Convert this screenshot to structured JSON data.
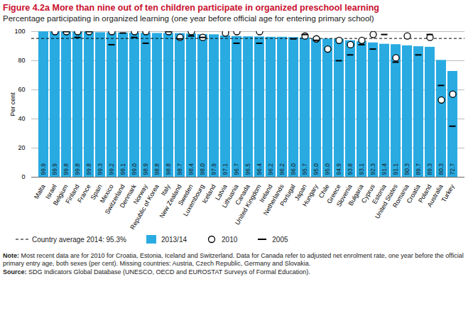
{
  "chart_data": {
    "type": "bar",
    "title": "Figure 4.2a More than nine out of ten children participate in organized preschool learning",
    "subtitle": "Percentage participating in organized learning (one year before official age for entering primary school)",
    "y_label": "Per cent",
    "categories": [
      "Malta",
      "Israel",
      "Belgium",
      "Finland",
      "France",
      "Spain",
      "Mexico",
      "Switzerland",
      "Denmark",
      "Norway",
      "Republic of Korea",
      "Italy",
      "New Zealand",
      "Sweden",
      "Luxembourg",
      "Iceland",
      "Latvia",
      "Lithuania",
      "Canada",
      "United Kingdom",
      "Ireland",
      "Netherlands",
      "Portugal",
      "Japan",
      "Hungary",
      "Chile",
      "Greece",
      "Slovenia",
      "Bulgaria",
      "Cyprus",
      "Estonia",
      "United States",
      "Romania",
      "Croatia",
      "Poland",
      "Australia",
      "Turkey"
    ],
    "series": [
      {
        "name": "2013/14",
        "type": "bar",
        "color": "#29abe2",
        "data_labels": true,
        "values": [
          99.9,
          99.9,
          99.8,
          99.8,
          99.8,
          99.3,
          99.2,
          99.1,
          99.0,
          98.9,
          98.8,
          98.8,
          98.7,
          98.4,
          98.0,
          97.9,
          97.1,
          96.7,
          96.5,
          96.4,
          96.2,
          96.2,
          96.0,
          95.7,
          95.0,
          95.0,
          94.9,
          93.8,
          93.1,
          92.3,
          91.4,
          91.1,
          90.3,
          89.7,
          89.3,
          80.3,
          72.7
        ],
        "value_labels": [
          "99.9",
          "99.9",
          "99.8",
          "99.8",
          "99.8",
          "99.3",
          "99.2",
          "99.1",
          "99.0",
          "98.9",
          "98.8",
          "98.8",
          "98.7",
          "98.4",
          "98.0",
          "97.9",
          "97.1",
          "96.7",
          "96.5",
          "96.4",
          "96.2",
          "96.2",
          "96.0",
          "95.7",
          "95.0",
          "95.0",
          "94.9",
          "93.8",
          "93.1",
          "92.3",
          "91.4",
          "91.1",
          "90.3",
          "89.7",
          "89.3",
          "80.3",
          "72.7"
        ]
      },
      {
        "name": "2010",
        "type": "scatter",
        "marker": "circle",
        "color": "#000000",
        "values": [
          null,
          100,
          100,
          100,
          100,
          null,
          100,
          null,
          100,
          100,
          null,
          100,
          96,
          100,
          96,
          null,
          99,
          100,
          null,
          100,
          null,
          null,
          null,
          97,
          95,
          88,
          94,
          91,
          94,
          98,
          null,
          82,
          97,
          null,
          96,
          53,
          57
        ]
      },
      {
        "name": "2005",
        "type": "scatter",
        "marker": "dash",
        "color": "#000000",
        "values": [
          null,
          null,
          100,
          96,
          100,
          null,
          91,
          99,
          96,
          92,
          null,
          100,
          95,
          97,
          96,
          null,
          null,
          92,
          null,
          92,
          null,
          null,
          95,
          98,
          94,
          null,
          80,
          84,
          91,
          88,
          98,
          79,
          null,
          84,
          98,
          63,
          35
        ]
      }
    ],
    "average": {
      "label": "Country average 2014: 95.3%",
      "value": 95.3,
      "line_style": "dashed",
      "color": "#000000"
    },
    "ylim": [
      0,
      100
    ],
    "yticks": [
      0,
      20,
      40,
      60,
      80,
      100
    ],
    "grid": true,
    "legend": "bottom",
    "notes": [
      "Note: Most recent data are for 2010 for Croatia, Estonia, Iceland and Switzerland. Data for Canada refer to adjusted net enrolment rate, one year before the official primary entry age, both sexes (per cent). Missing countries: Austria, Czech Republic, Germany and Slovakia.",
      "Source: SDG Indicators Global Database (UNESCO, OECD and EUROSTAT Surveys of Formal Education)."
    ]
  }
}
